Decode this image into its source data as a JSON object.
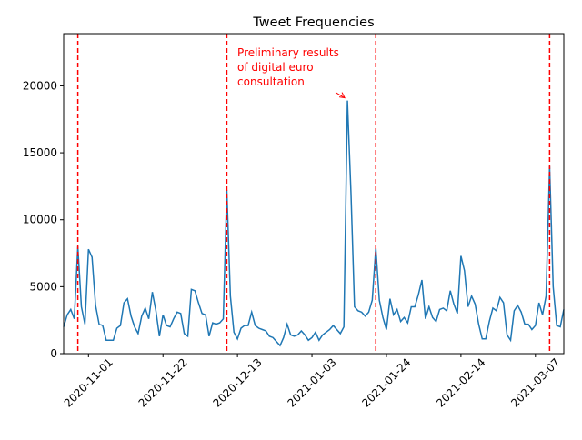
{
  "chart_data": {
    "type": "line",
    "title": "Tweet Frequencies",
    "x": [
      "2020-10-25",
      "2020-10-26",
      "2020-10-27",
      "2020-10-28",
      "2020-10-29",
      "2020-10-30",
      "2020-10-31",
      "2020-11-01",
      "2020-11-02",
      "2020-11-03",
      "2020-11-04",
      "2020-11-05",
      "2020-11-06",
      "2020-11-07",
      "2020-11-08",
      "2020-11-09",
      "2020-11-10",
      "2020-11-11",
      "2020-11-12",
      "2020-11-13",
      "2020-11-14",
      "2020-11-15",
      "2020-11-16",
      "2020-11-17",
      "2020-11-18",
      "2020-11-19",
      "2020-11-20",
      "2020-11-21",
      "2020-11-22",
      "2020-11-23",
      "2020-11-24",
      "2020-11-25",
      "2020-11-26",
      "2020-11-27",
      "2020-11-28",
      "2020-11-29",
      "2020-11-30",
      "2020-12-01",
      "2020-12-02",
      "2020-12-03",
      "2020-12-04",
      "2020-12-05",
      "2020-12-06",
      "2020-12-07",
      "2020-12-08",
      "2020-12-09",
      "2020-12-10",
      "2020-12-11",
      "2020-12-12",
      "2020-12-13",
      "2020-12-14",
      "2020-12-15",
      "2020-12-16",
      "2020-12-17",
      "2020-12-18",
      "2020-12-19",
      "2020-12-20",
      "2020-12-21",
      "2020-12-22",
      "2020-12-23",
      "2020-12-24",
      "2020-12-25",
      "2020-12-26",
      "2020-12-27",
      "2020-12-28",
      "2020-12-29",
      "2020-12-30",
      "2020-12-31",
      "2021-01-01",
      "2021-01-02",
      "2021-01-03",
      "2021-01-04",
      "2021-01-05",
      "2021-01-06",
      "2021-01-07",
      "2021-01-08",
      "2021-01-09",
      "2021-01-10",
      "2021-01-11",
      "2021-01-12",
      "2021-01-13",
      "2021-01-14",
      "2021-01-15",
      "2021-01-16",
      "2021-01-17",
      "2021-01-18",
      "2021-01-19",
      "2021-01-20",
      "2021-01-21",
      "2021-01-22",
      "2021-01-23",
      "2021-01-24",
      "2021-01-25",
      "2021-01-26",
      "2021-01-27",
      "2021-01-28",
      "2021-01-29",
      "2021-01-30",
      "2021-01-31",
      "2021-02-01",
      "2021-02-02",
      "2021-02-03",
      "2021-02-04",
      "2021-02-05",
      "2021-02-06",
      "2021-02-07",
      "2021-02-08",
      "2021-02-09",
      "2021-02-10",
      "2021-02-11",
      "2021-02-12",
      "2021-02-13",
      "2021-02-14",
      "2021-02-15",
      "2021-02-16",
      "2021-02-17",
      "2021-02-18",
      "2021-02-19",
      "2021-02-20",
      "2021-02-21",
      "2021-02-22",
      "2021-02-23",
      "2021-02-24",
      "2021-02-25",
      "2021-02-26",
      "2021-02-27",
      "2021-02-28",
      "2021-03-01",
      "2021-03-02",
      "2021-03-03",
      "2021-03-04",
      "2021-03-05",
      "2021-03-06",
      "2021-03-07",
      "2021-03-08",
      "2021-03-09",
      "2021-03-10",
      "2021-03-11",
      "2021-03-12",
      "2021-03-13",
      "2021-03-14",
      "2021-03-15"
    ],
    "values": [
      2000,
      2900,
      3300,
      2600,
      8000,
      3500,
      2200,
      7800,
      7200,
      3600,
      2200,
      2100,
      1000,
      1000,
      1000,
      1900,
      2100,
      3800,
      4100,
      2800,
      2000,
      1500,
      2800,
      3400,
      2600,
      4600,
      3200,
      1300,
      2900,
      2100,
      2000,
      2600,
      3100,
      3000,
      1500,
      1300,
      4800,
      4700,
      3800,
      3000,
      2900,
      1300,
      2300,
      2200,
      2300,
      2600,
      12200,
      4300,
      1600,
      1100,
      1900,
      2100,
      2100,
      3100,
      2100,
      1900,
      1800,
      1700,
      1300,
      1200,
      900,
      600,
      1200,
      2200,
      1400,
      1300,
      1400,
      1700,
      1400,
      1000,
      1200,
      1600,
      1000,
      1400,
      1600,
      1800,
      2100,
      1800,
      1500,
      2000,
      18900,
      12000,
      3500,
      3200,
      3100,
      2800,
      3100,
      4000,
      7900,
      4000,
      2700,
      1800,
      4100,
      2900,
      3300,
      2400,
      2700,
      2300,
      3500,
      3500,
      4400,
      5500,
      2600,
      3500,
      2700,
      2400,
      3300,
      3400,
      3200,
      4700,
      3700,
      3000,
      7300,
      6200,
      3500,
      4300,
      3700,
      2200,
      1100,
      1100,
      2400,
      3400,
      3200,
      4200,
      3800,
      1400,
      1000,
      3200,
      3600,
      3100,
      2200,
      2200,
      1800,
      2100,
      3800,
      2900,
      4300,
      14000,
      5000,
      2100,
      2000,
      3300
    ],
    "color": "#1f77b4",
    "xlim": [
      "2020-10-25",
      "2021-03-15"
    ],
    "xticks": [
      "2020-11-01",
      "2020-11-22",
      "2020-12-13",
      "2021-01-03",
      "2021-01-24",
      "2021-02-14",
      "2021-03-07"
    ],
    "ylim": [
      0,
      23900
    ],
    "yticks": [
      0,
      5000,
      10000,
      15000,
      20000
    ],
    "vlines": [
      "2020-10-29",
      "2020-12-10",
      "2021-01-21",
      "2021-03-11"
    ],
    "vline_color": "red",
    "annotation": {
      "text": [
        "Preliminary results",
        "of digital euro",
        "consultation"
      ],
      "x": "2021-01-13",
      "color": "red"
    }
  }
}
